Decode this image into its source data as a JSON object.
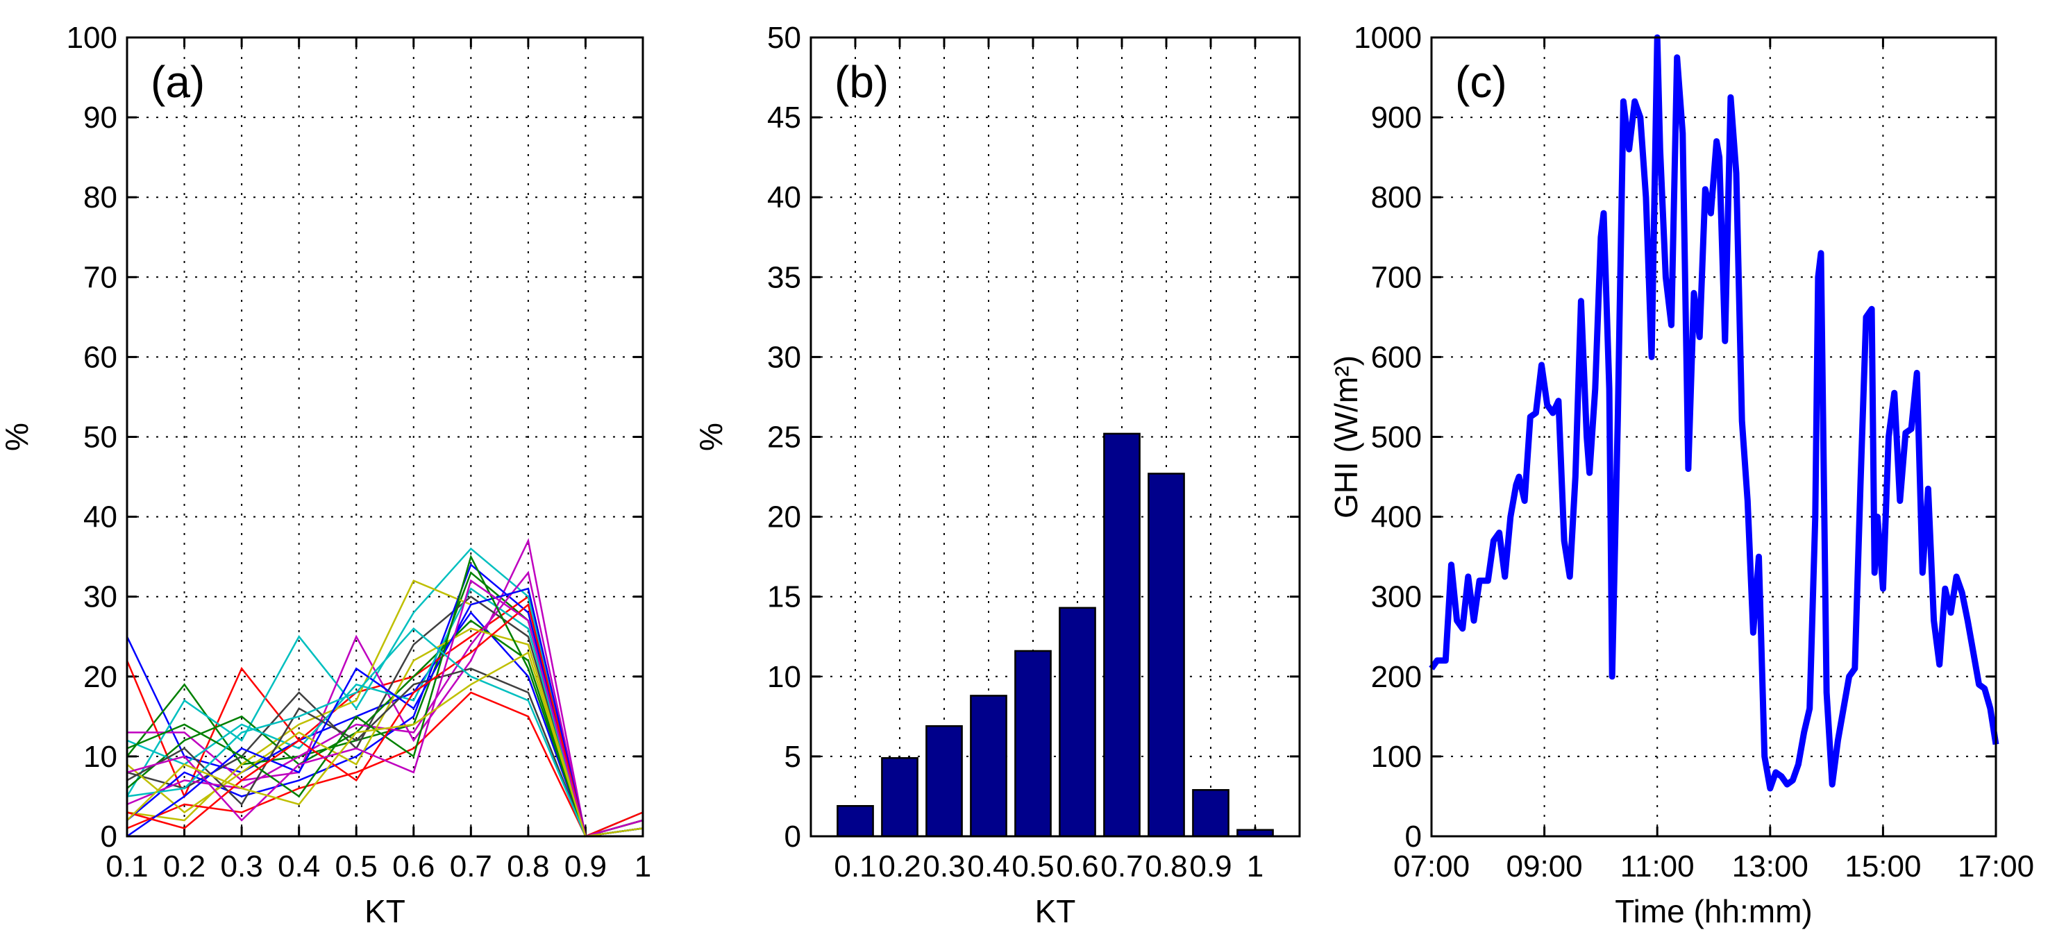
{
  "chart_data": [
    {
      "type": "line",
      "panel_label": "(a)",
      "xlabel": "KT",
      "ylabel": "%",
      "xlim": [
        0.1,
        1
      ],
      "ylim": [
        0,
        100
      ],
      "xticks": [
        "0.1",
        "0.2",
        "0.3",
        "0.4",
        "0.5",
        "0.6",
        "0.7",
        "0.8",
        "0.9",
        "1"
      ],
      "yticks": [
        "0",
        "10",
        "20",
        "30",
        "40",
        "50",
        "60",
        "70",
        "80",
        "90",
        "100"
      ],
      "grid": true,
      "x": [
        0.1,
        0.2,
        0.3,
        0.4,
        0.5,
        0.6,
        0.7,
        0.8,
        0.9,
        1.0
      ],
      "series_note": "many overlapping daily distributions (approx. 60 series)",
      "colors": [
        "#0000ff",
        "#008000",
        "#ff0000",
        "#00bfbf",
        "#bf00bf",
        "#bfbf00",
        "#404040"
      ],
      "series": [
        {
          "values": [
            25,
            10,
            8,
            12,
            15,
            18,
            28,
            20,
            0,
            1
          ]
        },
        {
          "values": [
            10,
            19,
            9,
            10,
            12,
            14,
            33,
            27,
            0,
            2
          ]
        },
        {
          "values": [
            22,
            5,
            21,
            12,
            18,
            20,
            25,
            30,
            0,
            1
          ]
        },
        {
          "values": [
            5,
            17,
            12,
            25,
            16,
            28,
            36,
            30,
            0,
            3
          ]
        },
        {
          "values": [
            13,
            13,
            7,
            8,
            25,
            12,
            22,
            37,
            0,
            2
          ]
        },
        {
          "values": [
            3,
            2,
            9,
            14,
            17,
            32,
            29,
            31,
            0,
            1
          ]
        },
        {
          "values": [
            8,
            6,
            10,
            18,
            11,
            24,
            30,
            25,
            0,
            2
          ]
        },
        {
          "values": [
            2,
            8,
            5,
            7,
            10,
            15,
            34,
            28,
            0,
            1
          ]
        },
        {
          "values": [
            6,
            12,
            15,
            9,
            13,
            20,
            27,
            22,
            0,
            1
          ]
        },
        {
          "values": [
            1,
            4,
            3,
            6,
            8,
            11,
            18,
            15,
            0,
            0
          ]
        },
        {
          "values": [
            12,
            9,
            14,
            11,
            19,
            17,
            31,
            26,
            0,
            2
          ]
        },
        {
          "values": [
            4,
            7,
            6,
            10,
            14,
            13,
            24,
            33,
            0,
            1
          ]
        },
        {
          "values": [
            9,
            3,
            8,
            13,
            9,
            22,
            26,
            24,
            0,
            2
          ]
        },
        {
          "values": [
            7,
            11,
            4,
            16,
            12,
            19,
            21,
            18,
            0,
            1
          ]
        },
        {
          "values": [
            0,
            5,
            11,
            8,
            21,
            16,
            29,
            31,
            0,
            1
          ]
        },
        {
          "values": [
            11,
            14,
            10,
            5,
            15,
            10,
            35,
            21,
            0,
            2
          ]
        },
        {
          "values": [
            3,
            1,
            7,
            12,
            7,
            18,
            23,
            29,
            0,
            3
          ]
        },
        {
          "values": [
            5,
            6,
            13,
            15,
            18,
            26,
            20,
            17,
            0,
            1
          ]
        },
        {
          "values": [
            8,
            10,
            2,
            9,
            11,
            8,
            32,
            27,
            0,
            2
          ]
        },
        {
          "values": [
            2,
            9,
            6,
            4,
            13,
            14,
            19,
            23,
            0,
            1
          ]
        }
      ]
    },
    {
      "type": "bar",
      "panel_label": "(b)",
      "xlabel": "KT",
      "ylabel": "%",
      "xlim": [
        0,
        1.1
      ],
      "ylim": [
        0,
        50
      ],
      "categories": [
        "0.1",
        "0.2",
        "0.3",
        "0.4",
        "0.5",
        "0.6",
        "0.7",
        "0.8",
        "0.9",
        "1"
      ],
      "values": [
        1.9,
        4.9,
        6.9,
        8.8,
        11.6,
        14.3,
        25.2,
        22.7,
        2.9,
        0.4
      ],
      "yticks": [
        "0",
        "5",
        "10",
        "15",
        "20",
        "25",
        "30",
        "35",
        "40",
        "45",
        "50"
      ],
      "bar_color": "#00008b",
      "grid": true
    },
    {
      "type": "line",
      "panel_label": "(c)",
      "xlabel": "Time (hh:mm)",
      "ylabel": "GHI (W/m²)",
      "xlim": [
        7,
        17
      ],
      "ylim": [
        0,
        1000
      ],
      "xticks": [
        "07:00",
        "09:00",
        "11:00",
        "13:00",
        "15:00",
        "17:00"
      ],
      "yticks": [
        "0",
        "100",
        "200",
        "300",
        "400",
        "500",
        "600",
        "700",
        "800",
        "900",
        "1000"
      ],
      "grid": true,
      "line_color": "#0000ff",
      "x": [
        7.0,
        7.1,
        7.25,
        7.35,
        7.45,
        7.55,
        7.65,
        7.75,
        7.85,
        8.0,
        8.1,
        8.2,
        8.3,
        8.4,
        8.5,
        8.55,
        8.65,
        8.75,
        8.85,
        8.95,
        9.05,
        9.15,
        9.25,
        9.35,
        9.45,
        9.55,
        9.65,
        9.75,
        9.8,
        9.9,
        10.0,
        10.05,
        10.15,
        10.2,
        10.3,
        10.4,
        10.5,
        10.6,
        10.7,
        10.8,
        10.9,
        11.0,
        11.05,
        11.15,
        11.25,
        11.35,
        11.45,
        11.55,
        11.65,
        11.75,
        11.85,
        11.95,
        12.05,
        12.1,
        12.2,
        12.3,
        12.4,
        12.5,
        12.6,
        12.7,
        12.8,
        12.9,
        13.0,
        13.1,
        13.2,
        13.3,
        13.4,
        13.5,
        13.6,
        13.7,
        13.8,
        13.85,
        13.9,
        14.0,
        14.1,
        14.2,
        14.3,
        14.4,
        14.5,
        14.6,
        14.7,
        14.8,
        14.85,
        14.9,
        15.0,
        15.1,
        15.2,
        15.3,
        15.4,
        15.5,
        15.6,
        15.7,
        15.8,
        15.9,
        16.0,
        16.1,
        16.2,
        16.3,
        16.4,
        16.5,
        16.6,
        16.7,
        16.8,
        16.9,
        17.0
      ],
      "y": [
        210,
        220,
        220,
        340,
        270,
        260,
        325,
        270,
        320,
        320,
        370,
        380,
        325,
        400,
        440,
        450,
        420,
        525,
        530,
        590,
        540,
        530,
        545,
        370,
        325,
        450,
        670,
        500,
        455,
        560,
        750,
        780,
        560,
        200,
        520,
        920,
        860,
        920,
        900,
        800,
        600,
        1000,
        860,
        700,
        640,
        975,
        880,
        460,
        680,
        625,
        810,
        780,
        870,
        850,
        620,
        925,
        830,
        520,
        420,
        255,
        350,
        100,
        60,
        80,
        75,
        65,
        70,
        90,
        130,
        160,
        400,
        700,
        730,
        180,
        65,
        120,
        160,
        200,
        210,
        440,
        650,
        660,
        330,
        400,
        310,
        500,
        555,
        420,
        505,
        510,
        580,
        330,
        435,
        270,
        215,
        310,
        280,
        325,
        305,
        270,
        230,
        190,
        185,
        160,
        115
      ]
    }
  ]
}
